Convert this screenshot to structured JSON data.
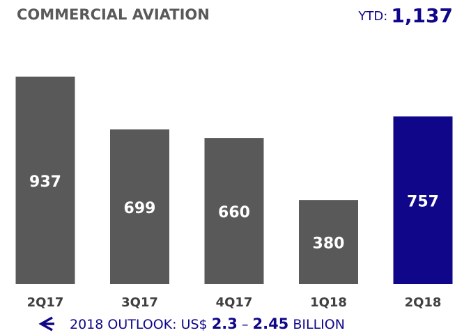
{
  "chart_data": {
    "type": "bar",
    "title": "COMMERCIAL AVIATION",
    "ytd_label": "YTD:",
    "ytd_value": "1,137",
    "categories": [
      "2Q17",
      "3Q17",
      "4Q17",
      "1Q18",
      "2Q18"
    ],
    "values": [
      937,
      699,
      660,
      380,
      757
    ],
    "colors": [
      "#595959",
      "#595959",
      "#595959",
      "#595959",
      "#10068a"
    ],
    "footer": {
      "text": "2018 OUTLOOK: US$",
      "low": "2.3",
      "dash": "–",
      "high": "2.45",
      "unit": "BILLION"
    }
  }
}
